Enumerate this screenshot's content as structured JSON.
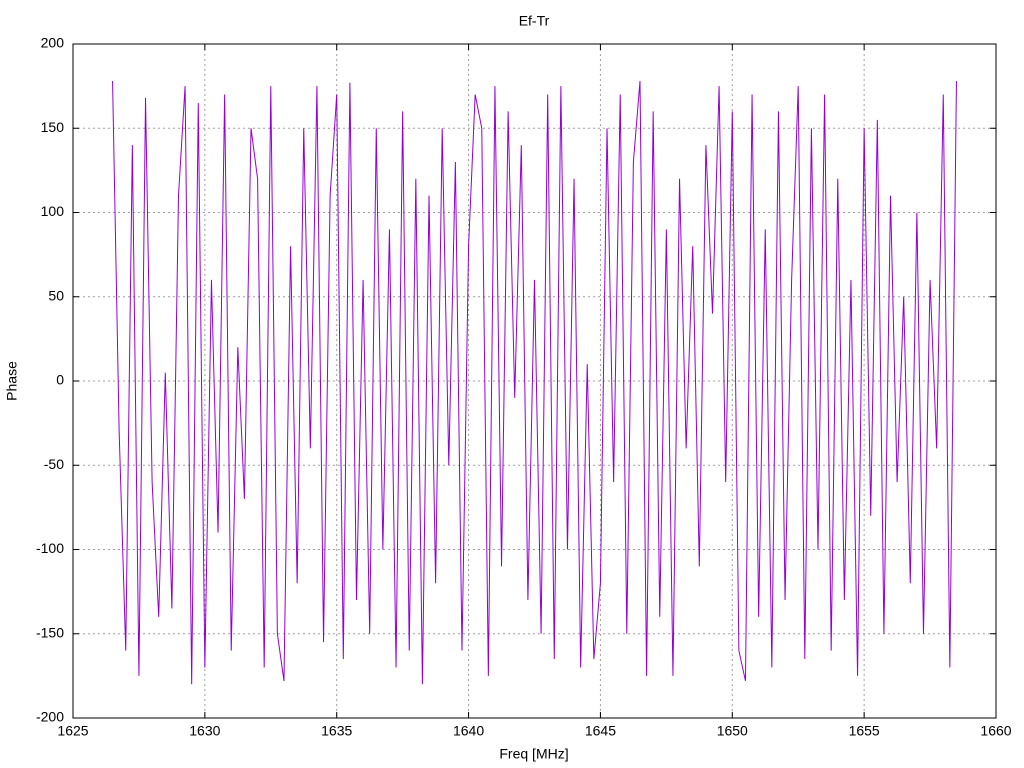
{
  "chart_data": {
    "type": "line",
    "title": "Ef-Tr",
    "x_label": "Freq [MHz]",
    "y_label": "Phase",
    "xlim": [
      1625,
      1660
    ],
    "xticks": [
      1625,
      1630,
      1635,
      1640,
      1645,
      1650,
      1655,
      1660
    ],
    "ylim": [
      -200,
      200
    ],
    "yticks": [
      -200,
      -150,
      -100,
      -50,
      0,
      50,
      100,
      150,
      200
    ],
    "grid": true,
    "color": "#9400d3",
    "x": [
      1626.5,
      1626.75,
      1627,
      1627.25,
      1627.5,
      1627.75,
      1628,
      1628.25,
      1628.5,
      1628.75,
      1629,
      1629.25,
      1629.5,
      1629.75,
      1630,
      1630.25,
      1630.5,
      1630.75,
      1631,
      1631.25,
      1631.5,
      1631.75,
      1632,
      1632.25,
      1632.5,
      1632.75,
      1633,
      1633.25,
      1633.5,
      1633.75,
      1634,
      1634.25,
      1634.5,
      1634.75,
      1635,
      1635.25,
      1635.5,
      1635.75,
      1636,
      1636.25,
      1636.5,
      1636.75,
      1637,
      1637.25,
      1637.5,
      1637.75,
      1638,
      1638.25,
      1638.5,
      1638.75,
      1639,
      1639.25,
      1639.5,
      1639.75,
      1640,
      1640.25,
      1640.5,
      1640.75,
      1641,
      1641.25,
      1641.5,
      1641.75,
      1642,
      1642.25,
      1642.5,
      1642.75,
      1643,
      1643.25,
      1643.5,
      1643.75,
      1644,
      1644.25,
      1644.5,
      1644.75,
      1645,
      1645.25,
      1645.5,
      1645.75,
      1646,
      1646.25,
      1646.5,
      1646.75,
      1647,
      1647.25,
      1647.5,
      1647.75,
      1648,
      1648.25,
      1648.5,
      1648.75,
      1649,
      1649.25,
      1649.5,
      1649.75,
      1650,
      1650.25,
      1650.5,
      1650.75,
      1651,
      1651.25,
      1651.5,
      1651.75,
      1652,
      1652.25,
      1652.5,
      1652.75,
      1653,
      1653.25,
      1653.5,
      1653.75,
      1654,
      1654.25,
      1654.5,
      1654.75,
      1655,
      1655.25,
      1655.5,
      1655.75,
      1656,
      1656.25,
      1656.5,
      1656.75,
      1657,
      1657.25,
      1657.5,
      1657.75,
      1658,
      1658.25,
      1658.5
    ],
    "values": [
      178,
      -30,
      -160,
      140,
      -175,
      168,
      -60,
      -140,
      5,
      -135,
      110,
      175,
      -180,
      165,
      -170,
      60,
      -90,
      170,
      -160,
      20,
      -70,
      150,
      120,
      -170,
      175,
      -150,
      -178,
      80,
      -120,
      150,
      -40,
      175,
      -155,
      110,
      170,
      -165,
      177,
      -130,
      60,
      -150,
      150,
      -100,
      90,
      -170,
      160,
      -160,
      120,
      -180,
      110,
      -120,
      150,
      -50,
      130,
      -160,
      80,
      170,
      150,
      -175,
      175,
      -110,
      160,
      -10,
      140,
      -130,
      60,
      -150,
      170,
      -165,
      175,
      -100,
      120,
      -170,
      10,
      -165,
      -120,
      150,
      -60,
      170,
      -150,
      130,
      178,
      -175,
      160,
      -140,
      90,
      -175,
      120,
      -40,
      80,
      -110,
      140,
      40,
      175,
      -60,
      160,
      -160,
      -178,
      170,
      -140,
      90,
      -170,
      160,
      -130,
      60,
      175,
      -165,
      150,
      -100,
      170,
      -160,
      120,
      -130,
      60,
      -175,
      150,
      -80,
      155,
      -150,
      110,
      -60,
      50,
      -120,
      100,
      -150,
      60,
      -40,
      170,
      -170,
      178
    ]
  }
}
